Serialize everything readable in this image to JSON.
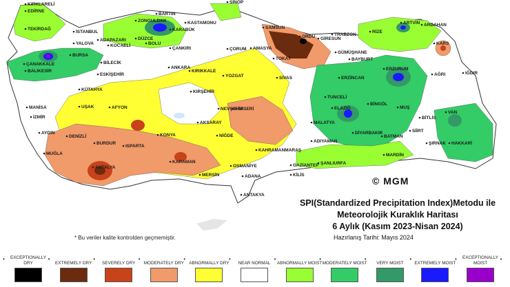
{
  "cities": [
    {
      "name": "KIRKLARELİ"
    },
    {
      "name": "EDİRNE"
    },
    {
      "name": "TEKİRDAĞ"
    },
    {
      "name": "İSTANBUL"
    },
    {
      "name": "BARTIN"
    },
    {
      "name": "ZONGULDAK"
    },
    {
      "name": "KARABÜK"
    },
    {
      "name": "KASTAMONU"
    },
    {
      "name": "SİNOP"
    },
    {
      "name": "SAMSUN"
    },
    {
      "name": "ORDU"
    },
    {
      "name": "GİRESUN"
    },
    {
      "name": "TRABZON"
    },
    {
      "name": "RİZE"
    },
    {
      "name": "ARTVİN"
    },
    {
      "name": "ARDAHAN"
    },
    {
      "name": "ADAPAZARI"
    },
    {
      "name": "DÜZCE"
    },
    {
      "name": "BOLU"
    },
    {
      "name": "KOCAELİ"
    },
    {
      "name": "YALOVA"
    },
    {
      "name": "ÇANAKKALE"
    },
    {
      "name": "BURSA"
    },
    {
      "name": "BİLECİK"
    },
    {
      "name": "BALIKESİR"
    },
    {
      "name": "ESKİŞEHİR"
    },
    {
      "name": "ÇANKIRI"
    },
    {
      "name": "ÇORUM"
    },
    {
      "name": "AMASYA"
    },
    {
      "name": "TOKAT"
    },
    {
      "name": "GÜMÜŞHANE"
    },
    {
      "name": "BAYBURT"
    },
    {
      "name": "KARS"
    },
    {
      "name": "ANKARA"
    },
    {
      "name": "KIRIKKALE"
    },
    {
      "name": "YOZGAT"
    },
    {
      "name": "SİVAS"
    },
    {
      "name": "ERZİNCAN"
    },
    {
      "name": "ERZURUM"
    },
    {
      "name": "AĞRI"
    },
    {
      "name": "IĞDIR"
    },
    {
      "name": "KÜTAHYA"
    },
    {
      "name": "MANİSA"
    },
    {
      "name": "UŞAK"
    },
    {
      "name": "AFYON"
    },
    {
      "name": "İZMİR"
    },
    {
      "name": "KIRŞEHİR"
    },
    {
      "name": "NEVŞEHİR"
    },
    {
      "name": "KAYSERİ"
    },
    {
      "name": "TUNCELİ"
    },
    {
      "name": "BİNGÖL"
    },
    {
      "name": "MUŞ"
    },
    {
      "name": "ELAZIĞ"
    },
    {
      "name": "MALATYA"
    },
    {
      "name": "BİTLİS"
    },
    {
      "name": "VAN"
    },
    {
      "name": "AKSARAY"
    },
    {
      "name": "AYDIN"
    },
    {
      "name": "DENİZLİ"
    },
    {
      "name": "BURDUR"
    },
    {
      "name": "ISPARTA"
    },
    {
      "name": "KONYA"
    },
    {
      "name": "NİĞDE"
    },
    {
      "name": "KAHRAMANMARAŞ"
    },
    {
      "name": "ADIYAMAN"
    },
    {
      "name": "DİYARBAKIR"
    },
    {
      "name": "BATMAN"
    },
    {
      "name": "SİİRT"
    },
    {
      "name": "ŞIRNAK"
    },
    {
      "name": "HAKKARİ"
    },
    {
      "name": "MUĞLA"
    },
    {
      "name": "ANTALYA"
    },
    {
      "name": "KARAMAN"
    },
    {
      "name": "MERSİN"
    },
    {
      "name": "ADANA"
    },
    {
      "name": "OSMANİYE"
    },
    {
      "name": "GAZİANTEP"
    },
    {
      "name": "ŞANLIURFA"
    },
    {
      "name": "MARDİN"
    },
    {
      "name": "KİLİS"
    },
    {
      "name": "ANTAKYA"
    }
  ],
  "mgm": "© MGM",
  "title_line1": "SPI(Standardized Precipitation Index)Metodu ile",
  "title_line2": "Meteorolojik Kuraklık Haritası",
  "title_line3": "6 Aylık (Kasım 2023-Nisan 2024)",
  "prepared": "Hazırlanış Tarihi: Mayıs 2024",
  "note": "* Bu veriler kalite kontrolden geçmemiştir.",
  "legend": [
    {
      "label": "EXCEPTIONALLY DRY",
      "color": "#000000"
    },
    {
      "label": "EXTREMELY DRY",
      "color": "#6b2b0f"
    },
    {
      "label": "SEVERELY DRY",
      "color": "#c8421a"
    },
    {
      "label": "MODERATELY DRY",
      "color": "#f19a6a"
    },
    {
      "label": "ABNORMALLY DRY",
      "color": "#ffff33"
    },
    {
      "label": "NEAR NORMAL",
      "color": "#ffffff"
    },
    {
      "label": "ABNORMALLY MOIST",
      "color": "#99ff33"
    },
    {
      "label": "MODERATELY MOIST",
      "color": "#33cc66"
    },
    {
      "label": "VERY MOIST",
      "color": "#339966"
    },
    {
      "label": "EXTREMELY MOIST",
      "color": "#1a1aff"
    },
    {
      "label": "EXCEPTIONALLY MOIST",
      "color": "#9900cc"
    }
  ],
  "legend_dots": [
    "•",
    "•",
    "•",
    "•",
    "•",
    "•",
    "•",
    "•",
    "•",
    "•",
    "•",
    "•"
  ]
}
